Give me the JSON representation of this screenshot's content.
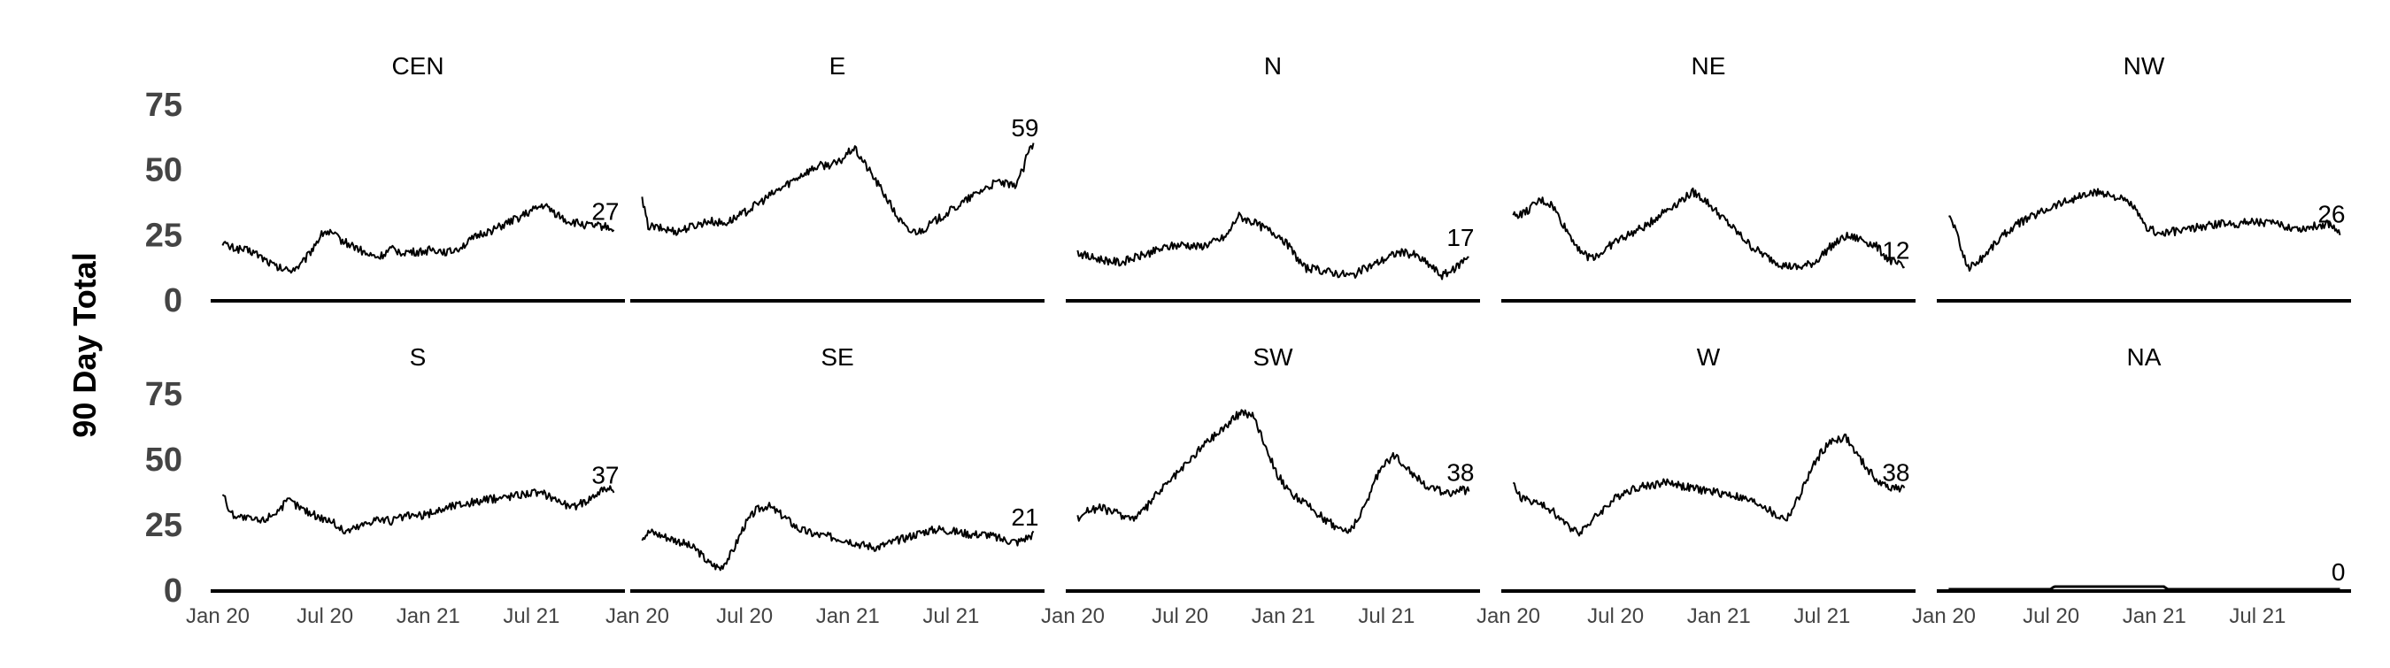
{
  "chart_data": {
    "type": "line",
    "ylabel": "90 Day Total",
    "ylim": [
      0,
      75
    ],
    "yticks": [
      0,
      25,
      50,
      75
    ],
    "xticks": [
      "Jan 20",
      "Jul 20",
      "Jan 21",
      "Jul 21"
    ],
    "grid": false,
    "layout": "facet grid, 2 rows x 5 columns",
    "line_color": "#000000",
    "series": [
      {
        "name": "CEN",
        "end_label": "27",
        "points": [
          [
            0,
            22
          ],
          [
            0.015,
            20
          ],
          [
            0.05,
            19
          ],
          [
            0.08,
            18
          ],
          [
            0.11,
            15
          ],
          [
            0.14,
            12
          ],
          [
            0.17,
            11
          ],
          [
            0.2,
            13
          ],
          [
            0.22,
            17
          ],
          [
            0.24,
            22
          ],
          [
            0.26,
            26
          ],
          [
            0.28,
            25
          ],
          [
            0.31,
            22
          ],
          [
            0.34,
            20
          ],
          [
            0.37,
            17
          ],
          [
            0.4,
            16
          ],
          [
            0.43,
            19
          ],
          [
            0.46,
            18
          ],
          [
            0.5,
            18
          ],
          [
            0.54,
            19
          ],
          [
            0.58,
            18
          ],
          [
            0.62,
            21
          ],
          [
            0.66,
            25
          ],
          [
            0.7,
            27
          ],
          [
            0.74,
            30
          ],
          [
            0.78,
            33
          ],
          [
            0.82,
            36
          ],
          [
            0.85,
            33
          ],
          [
            0.88,
            30
          ],
          [
            0.91,
            29
          ],
          [
            0.94,
            28
          ],
          [
            0.97,
            28
          ],
          [
            1,
            27
          ]
        ]
      },
      {
        "name": "E",
        "end_label": "59",
        "points": [
          [
            0,
            38
          ],
          [
            0.015,
            28
          ],
          [
            0.05,
            27
          ],
          [
            0.09,
            26
          ],
          [
            0.13,
            28
          ],
          [
            0.17,
            30
          ],
          [
            0.21,
            29
          ],
          [
            0.25,
            32
          ],
          [
            0.29,
            36
          ],
          [
            0.33,
            40
          ],
          [
            0.37,
            44
          ],
          [
            0.41,
            48
          ],
          [
            0.45,
            51
          ],
          [
            0.5,
            52
          ],
          [
            0.54,
            58
          ],
          [
            0.56,
            54
          ],
          [
            0.59,
            47
          ],
          [
            0.62,
            40
          ],
          [
            0.65,
            32
          ],
          [
            0.68,
            26
          ],
          [
            0.71,
            26
          ],
          [
            0.75,
            30
          ],
          [
            0.79,
            34
          ],
          [
            0.83,
            38
          ],
          [
            0.87,
            42
          ],
          [
            0.91,
            45
          ],
          [
            0.95,
            43
          ],
          [
            0.975,
            50
          ],
          [
            0.985,
            56
          ],
          [
            1,
            59
          ]
        ]
      },
      {
        "name": "N",
        "end_label": "17",
        "points": [
          [
            0,
            18
          ],
          [
            0.03,
            16
          ],
          [
            0.07,
            15
          ],
          [
            0.11,
            14
          ],
          [
            0.15,
            16
          ],
          [
            0.19,
            18
          ],
          [
            0.23,
            20
          ],
          [
            0.27,
            21
          ],
          [
            0.31,
            20
          ],
          [
            0.35,
            22
          ],
          [
            0.38,
            24
          ],
          [
            0.41,
            32
          ],
          [
            0.44,
            30
          ],
          [
            0.48,
            27
          ],
          [
            0.52,
            24
          ],
          [
            0.55,
            18
          ],
          [
            0.58,
            12
          ],
          [
            0.62,
            11
          ],
          [
            0.66,
            10
          ],
          [
            0.7,
            9
          ],
          [
            0.74,
            12
          ],
          [
            0.78,
            15
          ],
          [
            0.82,
            18
          ],
          [
            0.86,
            17
          ],
          [
            0.9,
            13
          ],
          [
            0.93,
            9
          ],
          [
            0.96,
            11
          ],
          [
            0.98,
            14
          ],
          [
            1,
            17
          ]
        ]
      },
      {
        "name": "NE",
        "end_label": "12",
        "points": [
          [
            0,
            32
          ],
          [
            0.03,
            33
          ],
          [
            0.07,
            38
          ],
          [
            0.1,
            36
          ],
          [
            0.13,
            28
          ],
          [
            0.16,
            21
          ],
          [
            0.19,
            16
          ],
          [
            0.22,
            17
          ],
          [
            0.26,
            22
          ],
          [
            0.3,
            25
          ],
          [
            0.34,
            28
          ],
          [
            0.38,
            33
          ],
          [
            0.42,
            37
          ],
          [
            0.46,
            41
          ],
          [
            0.49,
            38
          ],
          [
            0.53,
            32
          ],
          [
            0.57,
            26
          ],
          [
            0.61,
            20
          ],
          [
            0.65,
            16
          ],
          [
            0.69,
            13
          ],
          [
            0.73,
            12
          ],
          [
            0.77,
            14
          ],
          [
            0.81,
            20
          ],
          [
            0.85,
            24
          ],
          [
            0.89,
            23
          ],
          [
            0.93,
            20
          ],
          [
            0.96,
            15
          ],
          [
            1,
            12
          ]
        ]
      },
      {
        "name": "NW",
        "end_label": "26",
        "points": [
          [
            0,
            32
          ],
          [
            0.015,
            28
          ],
          [
            0.03,
            20
          ],
          [
            0.05,
            12
          ],
          [
            0.08,
            15
          ],
          [
            0.11,
            20
          ],
          [
            0.15,
            26
          ],
          [
            0.19,
            30
          ],
          [
            0.23,
            33
          ],
          [
            0.27,
            36
          ],
          [
            0.31,
            38
          ],
          [
            0.35,
            40
          ],
          [
            0.39,
            41
          ],
          [
            0.43,
            39
          ],
          [
            0.47,
            36
          ],
          [
            0.5,
            28
          ],
          [
            0.54,
            25
          ],
          [
            0.58,
            26
          ],
          [
            0.62,
            27
          ],
          [
            0.66,
            28
          ],
          [
            0.7,
            29
          ],
          [
            0.74,
            29
          ],
          [
            0.78,
            30
          ],
          [
            0.82,
            29
          ],
          [
            0.86,
            28
          ],
          [
            0.9,
            27
          ],
          [
            0.94,
            28
          ],
          [
            0.97,
            29
          ],
          [
            1,
            26
          ]
        ]
      },
      {
        "name": "S",
        "end_label": "37",
        "points": [
          [
            0,
            37
          ],
          [
            0.02,
            29
          ],
          [
            0.06,
            27
          ],
          [
            0.1,
            26
          ],
          [
            0.14,
            30
          ],
          [
            0.17,
            34
          ],
          [
            0.2,
            31
          ],
          [
            0.24,
            28
          ],
          [
            0.28,
            26
          ],
          [
            0.31,
            22
          ],
          [
            0.35,
            24
          ],
          [
            0.39,
            27
          ],
          [
            0.43,
            26
          ],
          [
            0.47,
            28
          ],
          [
            0.51,
            28
          ],
          [
            0.55,
            30
          ],
          [
            0.59,
            32
          ],
          [
            0.63,
            33
          ],
          [
            0.67,
            34
          ],
          [
            0.71,
            35
          ],
          [
            0.75,
            36
          ],
          [
            0.79,
            37
          ],
          [
            0.83,
            36
          ],
          [
            0.86,
            34
          ],
          [
            0.89,
            31
          ],
          [
            0.92,
            33
          ],
          [
            0.95,
            36
          ],
          [
            0.98,
            39
          ],
          [
            1,
            37
          ]
        ]
      },
      {
        "name": "SE",
        "end_label": "21",
        "points": [
          [
            0,
            20
          ],
          [
            0.02,
            22
          ],
          [
            0.06,
            20
          ],
          [
            0.1,
            18
          ],
          [
            0.14,
            15
          ],
          [
            0.17,
            10
          ],
          [
            0.2,
            8
          ],
          [
            0.23,
            14
          ],
          [
            0.26,
            24
          ],
          [
            0.29,
            30
          ],
          [
            0.32,
            32
          ],
          [
            0.36,
            28
          ],
          [
            0.4,
            23
          ],
          [
            0.44,
            21
          ],
          [
            0.48,
            20
          ],
          [
            0.52,
            19
          ],
          [
            0.56,
            17
          ],
          [
            0.6,
            16
          ],
          [
            0.64,
            18
          ],
          [
            0.68,
            20
          ],
          [
            0.72,
            22
          ],
          [
            0.76,
            23
          ],
          [
            0.8,
            22
          ],
          [
            0.84,
            21
          ],
          [
            0.88,
            21
          ],
          [
            0.92,
            19
          ],
          [
            0.96,
            18
          ],
          [
            1,
            21
          ]
        ]
      },
      {
        "name": "SW",
        "end_label": "38",
        "points": [
          [
            0,
            27
          ],
          [
            0.02,
            30
          ],
          [
            0.06,
            31
          ],
          [
            0.1,
            29
          ],
          [
            0.14,
            27
          ],
          [
            0.17,
            30
          ],
          [
            0.2,
            36
          ],
          [
            0.24,
            42
          ],
          [
            0.28,
            48
          ],
          [
            0.32,
            55
          ],
          [
            0.36,
            60
          ],
          [
            0.39,
            64
          ],
          [
            0.42,
            68
          ],
          [
            0.45,
            66
          ],
          [
            0.48,
            55
          ],
          [
            0.51,
            44
          ],
          [
            0.54,
            37
          ],
          [
            0.58,
            33
          ],
          [
            0.62,
            28
          ],
          [
            0.66,
            24
          ],
          [
            0.69,
            22
          ],
          [
            0.72,
            27
          ],
          [
            0.75,
            38
          ],
          [
            0.78,
            48
          ],
          [
            0.81,
            51
          ],
          [
            0.84,
            47
          ],
          [
            0.87,
            42
          ],
          [
            0.91,
            38
          ],
          [
            0.95,
            37
          ],
          [
            1,
            38
          ]
        ]
      },
      {
        "name": "W",
        "end_label": "38",
        "points": [
          [
            0,
            40
          ],
          [
            0.02,
            35
          ],
          [
            0.06,
            33
          ],
          [
            0.1,
            30
          ],
          [
            0.14,
            24
          ],
          [
            0.17,
            22
          ],
          [
            0.2,
            26
          ],
          [
            0.24,
            32
          ],
          [
            0.28,
            37
          ],
          [
            0.32,
            39
          ],
          [
            0.36,
            40
          ],
          [
            0.4,
            41
          ],
          [
            0.44,
            39
          ],
          [
            0.48,
            38
          ],
          [
            0.52,
            37
          ],
          [
            0.56,
            36
          ],
          [
            0.6,
            34
          ],
          [
            0.64,
            32
          ],
          [
            0.67,
            28
          ],
          [
            0.7,
            27
          ],
          [
            0.73,
            35
          ],
          [
            0.76,
            45
          ],
          [
            0.79,
            53
          ],
          [
            0.82,
            57
          ],
          [
            0.85,
            58
          ],
          [
            0.88,
            51
          ],
          [
            0.91,
            45
          ],
          [
            0.94,
            40
          ],
          [
            0.97,
            39
          ],
          [
            1,
            38
          ]
        ]
      },
      {
        "name": "NA",
        "end_label": "0",
        "points": [
          [
            0,
            0
          ],
          [
            0.26,
            0
          ],
          [
            0.27,
            1
          ],
          [
            0.55,
            1
          ],
          [
            0.56,
            0
          ],
          [
            1,
            0
          ]
        ]
      }
    ]
  }
}
